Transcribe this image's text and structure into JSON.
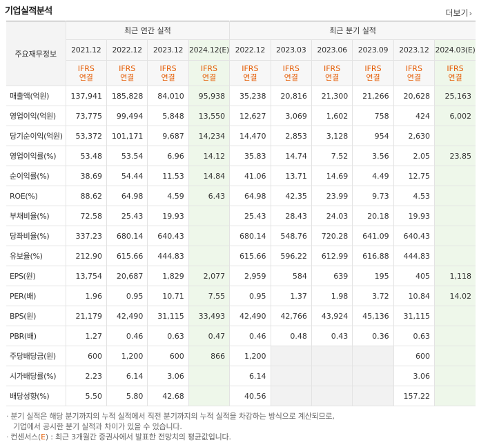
{
  "header": {
    "title": "기업실적분석",
    "more_label": "더보기",
    "more_icon": "chevron-right"
  },
  "table": {
    "rowhead_label": "주요재무정보",
    "group_annual": "최근 연간 실적",
    "group_quarter": "최근 분기 실적",
    "periods": [
      "2021.12",
      "2022.12",
      "2023.12",
      "2024.12(E)",
      "2022.12",
      "2023.03",
      "2023.06",
      "2023.09",
      "2023.12",
      "2024.03(E)"
    ],
    "basis_top": "IFRS",
    "basis_bottom": "연결",
    "rows": [
      {
        "label": "매출액(억원)",
        "values": [
          "137,941",
          "185,828",
          "84,010",
          "95,938",
          "35,238",
          "20,816",
          "21,300",
          "21,266",
          "20,628",
          "25,163"
        ]
      },
      {
        "label": "영업이익(억원)",
        "values": [
          "73,775",
          "99,494",
          "5,848",
          "13,550",
          "12,627",
          "3,069",
          "1,602",
          "758",
          "424",
          "6,002"
        ]
      },
      {
        "label": "당기순이익(억원)",
        "values": [
          "53,372",
          "101,171",
          "9,687",
          "14,234",
          "14,470",
          "2,853",
          "3,128",
          "954",
          "2,630",
          ""
        ]
      },
      {
        "label": "영업이익률(%)",
        "values": [
          "53.48",
          "53.54",
          "6.96",
          "14.12",
          "35.83",
          "14.74",
          "7.52",
          "3.56",
          "2.05",
          "23.85"
        ]
      },
      {
        "label": "순이익률(%)",
        "values": [
          "38.69",
          "54.44",
          "11.53",
          "14.84",
          "41.06",
          "13.71",
          "14.69",
          "4.49",
          "12.75",
          ""
        ]
      },
      {
        "label": "ROE(%)",
        "values": [
          "88.62",
          "64.98",
          "4.59",
          "6.43",
          "64.98",
          "42.35",
          "23.99",
          "9.73",
          "4.53",
          ""
        ]
      },
      {
        "label": "부채비율(%)",
        "values": [
          "72.58",
          "25.43",
          "19.93",
          "",
          "25.43",
          "28.43",
          "24.03",
          "20.18",
          "19.93",
          ""
        ]
      },
      {
        "label": "당좌비율(%)",
        "values": [
          "337.23",
          "680.14",
          "640.43",
          "",
          "680.14",
          "548.76",
          "720.28",
          "641.09",
          "640.43",
          ""
        ]
      },
      {
        "label": "유보율(%)",
        "values": [
          "212.90",
          "615.66",
          "444.83",
          "",
          "615.66",
          "596.22",
          "612.99",
          "616.88",
          "444.83",
          ""
        ]
      },
      {
        "label": "EPS(원)",
        "values": [
          "13,754",
          "20,687",
          "1,829",
          "2,077",
          "2,959",
          "584",
          "639",
          "195",
          "405",
          "1,118"
        ]
      },
      {
        "label": "PER(배)",
        "values": [
          "1.96",
          "0.95",
          "10.71",
          "7.55",
          "0.95",
          "1.37",
          "1.98",
          "3.72",
          "10.84",
          "14.02"
        ]
      },
      {
        "label": "BPS(원)",
        "values": [
          "21,179",
          "42,490",
          "31,115",
          "33,493",
          "42,490",
          "42,766",
          "43,924",
          "45,136",
          "31,115",
          ""
        ]
      },
      {
        "label": "PBR(배)",
        "values": [
          "1.27",
          "0.46",
          "0.63",
          "0.47",
          "0.46",
          "0.48",
          "0.43",
          "0.36",
          "0.63",
          ""
        ]
      },
      {
        "label": "주당배당금(원)",
        "values": [
          "600",
          "1,200",
          "600",
          "866",
          "1,200",
          "",
          "",
          "",
          "600",
          ""
        ]
      },
      {
        "label": "시가배당률(%)",
        "values": [
          "2.23",
          "6.14",
          "3.06",
          "",
          "6.14",
          "",
          "",
          "",
          "3.06",
          ""
        ]
      },
      {
        "label": "배당성향(%)",
        "values": [
          "5.50",
          "5.80",
          "42.68",
          "",
          "40.56",
          "",
          "",
          "",
          "157.22",
          ""
        ]
      }
    ]
  },
  "notes": {
    "line1": "분기 실적은 해당 분기까지의 누적 실적에서 직전 분기까지의 누적 실적을 차감하는 방식으로 계산되므로,",
    "line2": "기업에서 공시한 분기 실적과 차이가 있을 수 있습니다.",
    "line3_a": "컨센서스(",
    "line3_e": "E",
    "line3_b": ") : 최근 3개월간 증권사에서 발표한 전망치의 평균값입니다."
  }
}
